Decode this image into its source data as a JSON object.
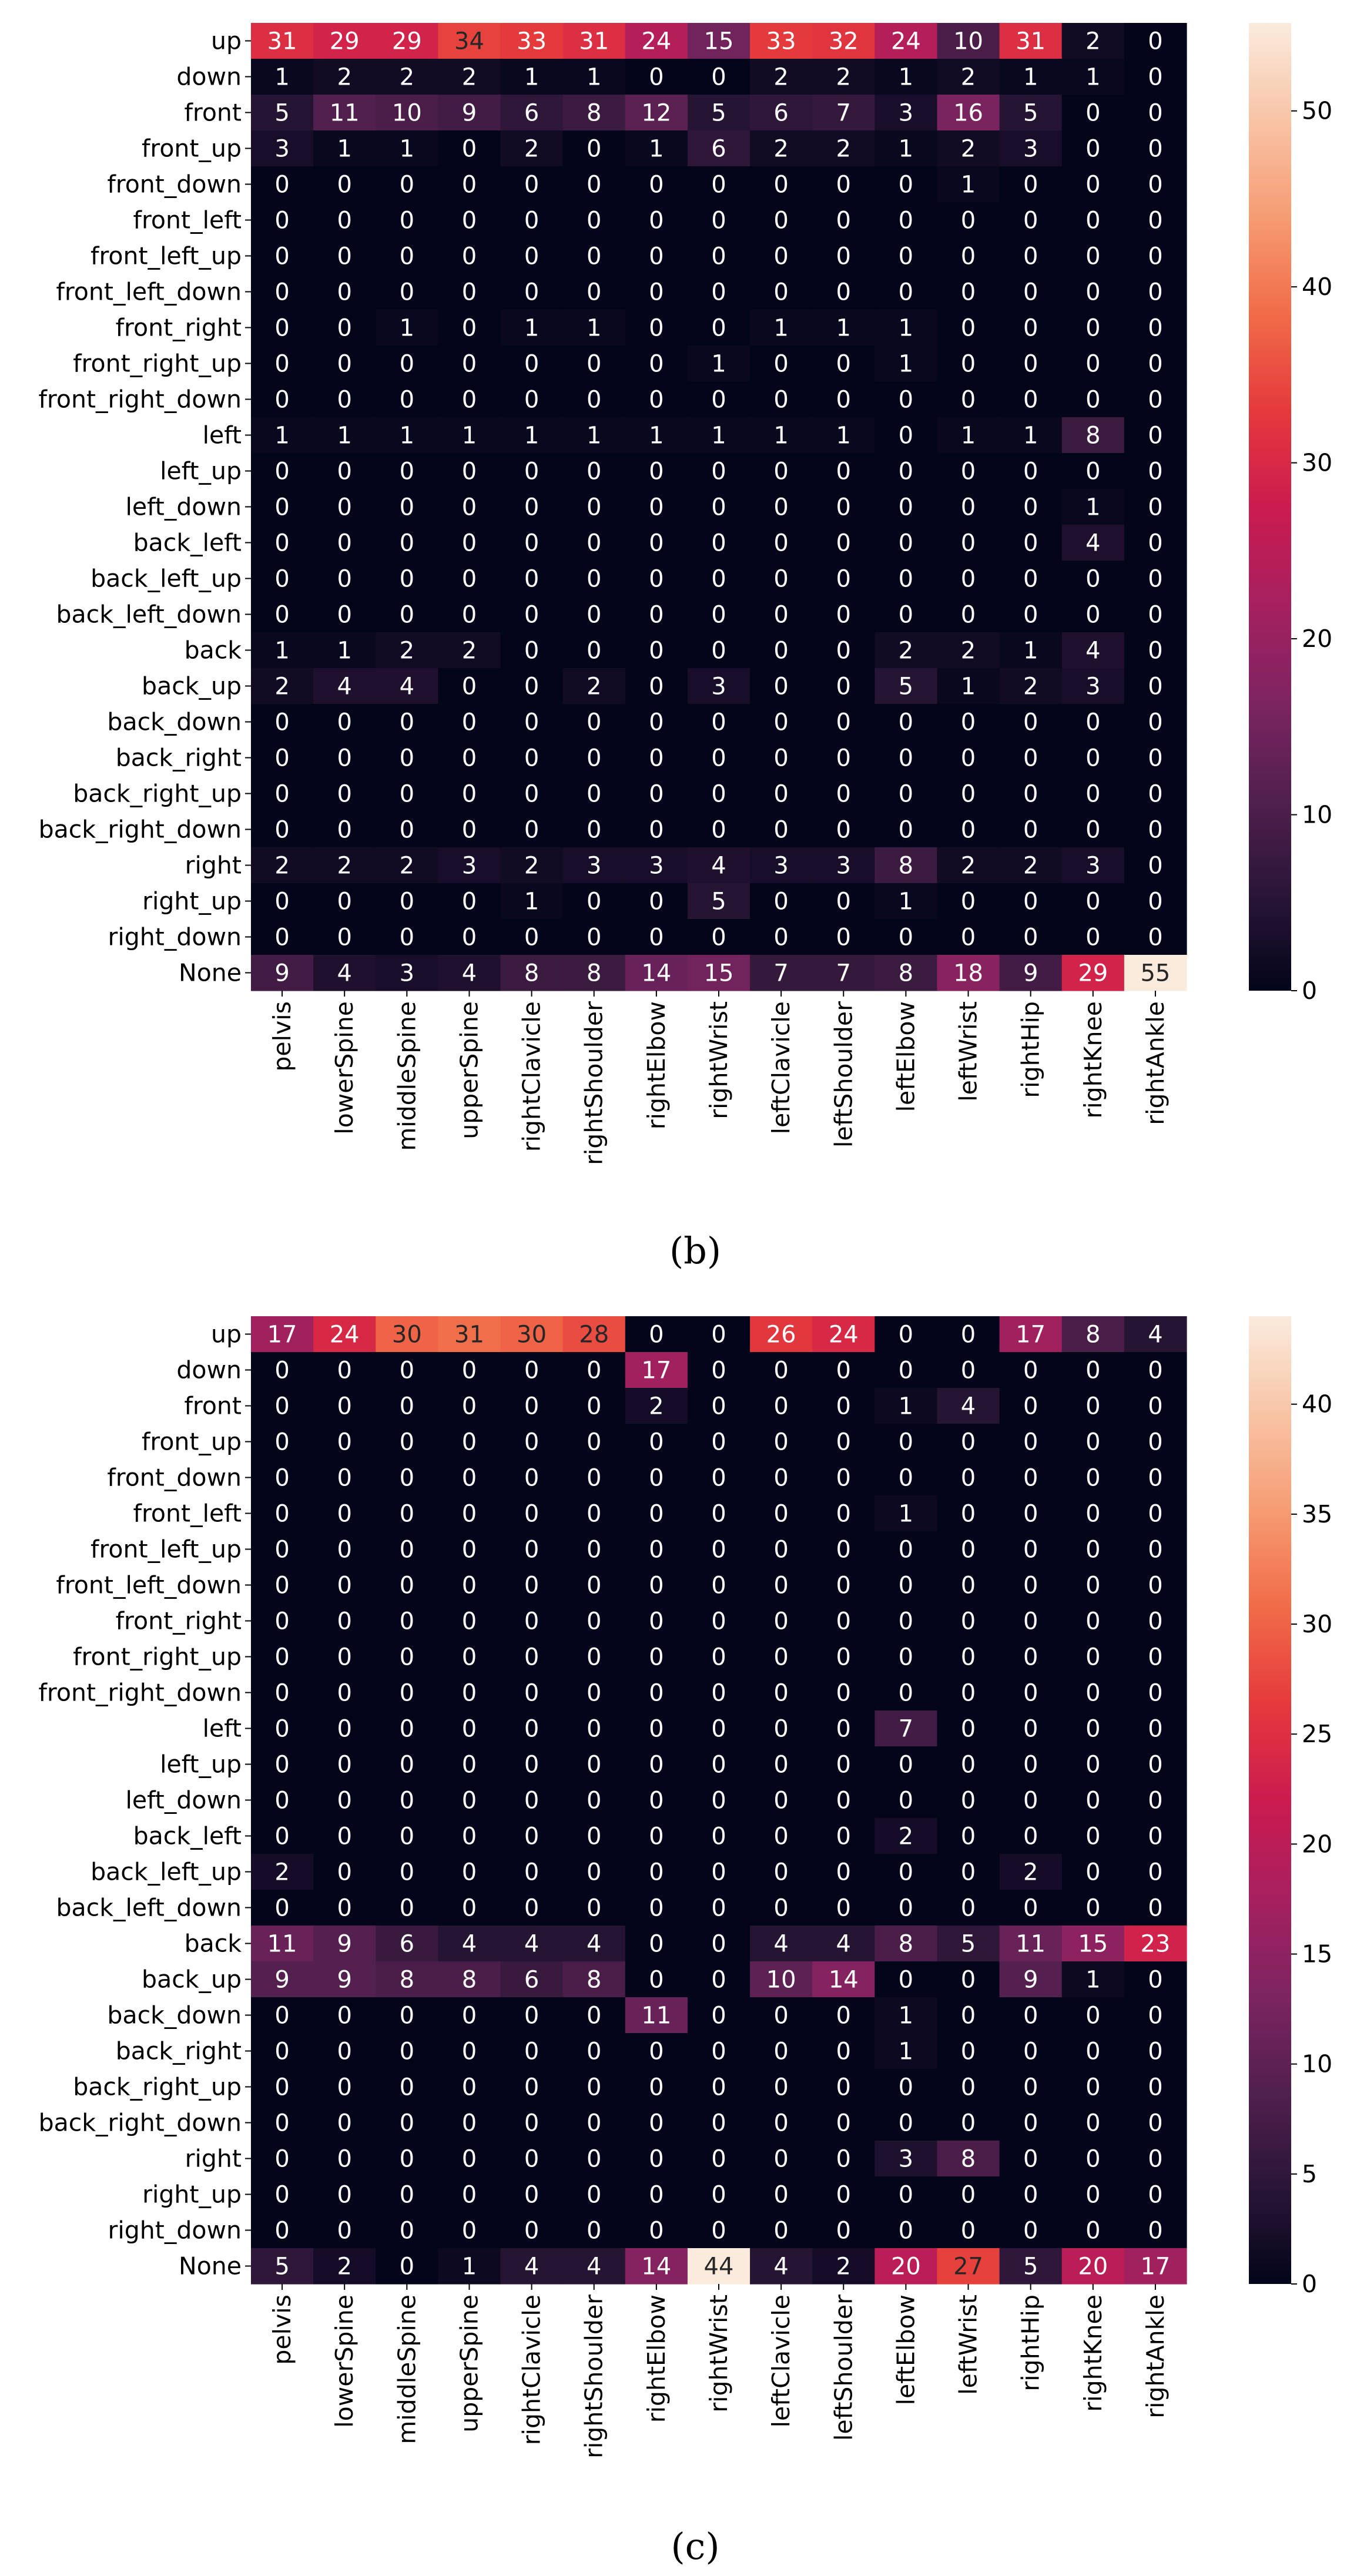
{
  "chart_data": [
    {
      "type": "heatmap",
      "caption": "(b)",
      "x_categories": [
        "pelvis",
        "lowerSpine",
        "middleSpine",
        "upperSpine",
        "rightClavicle",
        "rightShoulder",
        "rightElbow",
        "rightWrist",
        "leftClavicle",
        "leftShoulder",
        "leftElbow",
        "leftWrist",
        "rightHip",
        "rightKnee",
        "rightAnkle"
      ],
      "y_categories": [
        "up",
        "down",
        "front",
        "front_up",
        "front_down",
        "front_left",
        "front_left_up",
        "front_left_down",
        "front_right",
        "front_right_up",
        "front_right_down",
        "left",
        "left_up",
        "left_down",
        "back_left",
        "back_left_up",
        "back_left_down",
        "back",
        "back_up",
        "back_down",
        "back_right",
        "back_right_up",
        "back_right_down",
        "right",
        "right_up",
        "right_down",
        "None"
      ],
      "values": [
        [
          31,
          29,
          29,
          34,
          33,
          31,
          24,
          15,
          33,
          32,
          24,
          10,
          31,
          2,
          0
        ],
        [
          1,
          2,
          2,
          2,
          1,
          1,
          0,
          0,
          2,
          2,
          1,
          2,
          1,
          1,
          0
        ],
        [
          5,
          11,
          10,
          9,
          6,
          8,
          12,
          5,
          6,
          7,
          3,
          16,
          5,
          0,
          0
        ],
        [
          3,
          1,
          1,
          0,
          2,
          0,
          1,
          6,
          2,
          2,
          1,
          2,
          3,
          0,
          0
        ],
        [
          0,
          0,
          0,
          0,
          0,
          0,
          0,
          0,
          0,
          0,
          0,
          1,
          0,
          0,
          0
        ],
        [
          0,
          0,
          0,
          0,
          0,
          0,
          0,
          0,
          0,
          0,
          0,
          0,
          0,
          0,
          0
        ],
        [
          0,
          0,
          0,
          0,
          0,
          0,
          0,
          0,
          0,
          0,
          0,
          0,
          0,
          0,
          0
        ],
        [
          0,
          0,
          0,
          0,
          0,
          0,
          0,
          0,
          0,
          0,
          0,
          0,
          0,
          0,
          0
        ],
        [
          0,
          0,
          1,
          0,
          1,
          1,
          0,
          0,
          1,
          1,
          1,
          0,
          0,
          0,
          0
        ],
        [
          0,
          0,
          0,
          0,
          0,
          0,
          0,
          1,
          0,
          0,
          1,
          0,
          0,
          0,
          0
        ],
        [
          0,
          0,
          0,
          0,
          0,
          0,
          0,
          0,
          0,
          0,
          0,
          0,
          0,
          0,
          0
        ],
        [
          1,
          1,
          1,
          1,
          1,
          1,
          1,
          1,
          1,
          1,
          0,
          1,
          1,
          8,
          0
        ],
        [
          0,
          0,
          0,
          0,
          0,
          0,
          0,
          0,
          0,
          0,
          0,
          0,
          0,
          0,
          0
        ],
        [
          0,
          0,
          0,
          0,
          0,
          0,
          0,
          0,
          0,
          0,
          0,
          0,
          0,
          1,
          0
        ],
        [
          0,
          0,
          0,
          0,
          0,
          0,
          0,
          0,
          0,
          0,
          0,
          0,
          0,
          4,
          0
        ],
        [
          0,
          0,
          0,
          0,
          0,
          0,
          0,
          0,
          0,
          0,
          0,
          0,
          0,
          0,
          0
        ],
        [
          0,
          0,
          0,
          0,
          0,
          0,
          0,
          0,
          0,
          0,
          0,
          0,
          0,
          0,
          0
        ],
        [
          1,
          1,
          2,
          2,
          0,
          0,
          0,
          0,
          0,
          0,
          2,
          2,
          1,
          4,
          0
        ],
        [
          2,
          4,
          4,
          0,
          0,
          2,
          0,
          3,
          0,
          0,
          5,
          1,
          2,
          3,
          0
        ],
        [
          0,
          0,
          0,
          0,
          0,
          0,
          0,
          0,
          0,
          0,
          0,
          0,
          0,
          0,
          0
        ],
        [
          0,
          0,
          0,
          0,
          0,
          0,
          0,
          0,
          0,
          0,
          0,
          0,
          0,
          0,
          0
        ],
        [
          0,
          0,
          0,
          0,
          0,
          0,
          0,
          0,
          0,
          0,
          0,
          0,
          0,
          0,
          0
        ],
        [
          0,
          0,
          0,
          0,
          0,
          0,
          0,
          0,
          0,
          0,
          0,
          0,
          0,
          0,
          0
        ],
        [
          2,
          2,
          2,
          3,
          2,
          3,
          3,
          4,
          3,
          3,
          8,
          2,
          2,
          3,
          0
        ],
        [
          0,
          0,
          0,
          0,
          1,
          0,
          0,
          5,
          0,
          0,
          1,
          0,
          0,
          0,
          0
        ],
        [
          0,
          0,
          0,
          0,
          0,
          0,
          0,
          0,
          0,
          0,
          0,
          0,
          0,
          0,
          0
        ],
        [
          9,
          4,
          3,
          4,
          8,
          8,
          14,
          15,
          7,
          7,
          8,
          18,
          9,
          29,
          55
        ]
      ],
      "vmin": 0,
      "vmax": 55,
      "colorbar_ticks": [
        0,
        10,
        20,
        30,
        40,
        50
      ],
      "colormap": "rocket"
    },
    {
      "type": "heatmap",
      "caption": "(c)",
      "x_categories": [
        "pelvis",
        "lowerSpine",
        "middleSpine",
        "upperSpine",
        "rightClavicle",
        "rightShoulder",
        "rightElbow",
        "rightWrist",
        "leftClavicle",
        "leftShoulder",
        "leftElbow",
        "leftWrist",
        "rightHip",
        "rightKnee",
        "rightAnkle"
      ],
      "y_categories": [
        "up",
        "down",
        "front",
        "front_up",
        "front_down",
        "front_left",
        "front_left_up",
        "front_left_down",
        "front_right",
        "front_right_up",
        "front_right_down",
        "left",
        "left_up",
        "left_down",
        "back_left",
        "back_left_up",
        "back_left_down",
        "back",
        "back_up",
        "back_down",
        "back_right",
        "back_right_up",
        "back_right_down",
        "right",
        "right_up",
        "right_down",
        "None"
      ],
      "values": [
        [
          17,
          24,
          30,
          31,
          30,
          28,
          0,
          0,
          26,
          24,
          0,
          0,
          17,
          8,
          4
        ],
        [
          0,
          0,
          0,
          0,
          0,
          0,
          17,
          0,
          0,
          0,
          0,
          0,
          0,
          0,
          0
        ],
        [
          0,
          0,
          0,
          0,
          0,
          0,
          2,
          0,
          0,
          0,
          1,
          4,
          0,
          0,
          0
        ],
        [
          0,
          0,
          0,
          0,
          0,
          0,
          0,
          0,
          0,
          0,
          0,
          0,
          0,
          0,
          0
        ],
        [
          0,
          0,
          0,
          0,
          0,
          0,
          0,
          0,
          0,
          0,
          0,
          0,
          0,
          0,
          0
        ],
        [
          0,
          0,
          0,
          0,
          0,
          0,
          0,
          0,
          0,
          0,
          1,
          0,
          0,
          0,
          0
        ],
        [
          0,
          0,
          0,
          0,
          0,
          0,
          0,
          0,
          0,
          0,
          0,
          0,
          0,
          0,
          0
        ],
        [
          0,
          0,
          0,
          0,
          0,
          0,
          0,
          0,
          0,
          0,
          0,
          0,
          0,
          0,
          0
        ],
        [
          0,
          0,
          0,
          0,
          0,
          0,
          0,
          0,
          0,
          0,
          0,
          0,
          0,
          0,
          0
        ],
        [
          0,
          0,
          0,
          0,
          0,
          0,
          0,
          0,
          0,
          0,
          0,
          0,
          0,
          0,
          0
        ],
        [
          0,
          0,
          0,
          0,
          0,
          0,
          0,
          0,
          0,
          0,
          0,
          0,
          0,
          0,
          0
        ],
        [
          0,
          0,
          0,
          0,
          0,
          0,
          0,
          0,
          0,
          0,
          7,
          0,
          0,
          0,
          0
        ],
        [
          0,
          0,
          0,
          0,
          0,
          0,
          0,
          0,
          0,
          0,
          0,
          0,
          0,
          0,
          0
        ],
        [
          0,
          0,
          0,
          0,
          0,
          0,
          0,
          0,
          0,
          0,
          0,
          0,
          0,
          0,
          0
        ],
        [
          0,
          0,
          0,
          0,
          0,
          0,
          0,
          0,
          0,
          0,
          2,
          0,
          0,
          0,
          0
        ],
        [
          2,
          0,
          0,
          0,
          0,
          0,
          0,
          0,
          0,
          0,
          0,
          0,
          2,
          0,
          0
        ],
        [
          0,
          0,
          0,
          0,
          0,
          0,
          0,
          0,
          0,
          0,
          0,
          0,
          0,
          0,
          0
        ],
        [
          11,
          9,
          6,
          4,
          4,
          4,
          0,
          0,
          4,
          4,
          8,
          5,
          11,
          15,
          23
        ],
        [
          9,
          9,
          8,
          8,
          6,
          8,
          0,
          0,
          10,
          14,
          0,
          0,
          9,
          1,
          0
        ],
        [
          0,
          0,
          0,
          0,
          0,
          0,
          11,
          0,
          0,
          0,
          1,
          0,
          0,
          0,
          0
        ],
        [
          0,
          0,
          0,
          0,
          0,
          0,
          0,
          0,
          0,
          0,
          1,
          0,
          0,
          0,
          0
        ],
        [
          0,
          0,
          0,
          0,
          0,
          0,
          0,
          0,
          0,
          0,
          0,
          0,
          0,
          0,
          0
        ],
        [
          0,
          0,
          0,
          0,
          0,
          0,
          0,
          0,
          0,
          0,
          0,
          0,
          0,
          0,
          0
        ],
        [
          0,
          0,
          0,
          0,
          0,
          0,
          0,
          0,
          0,
          0,
          3,
          8,
          0,
          0,
          0
        ],
        [
          0,
          0,
          0,
          0,
          0,
          0,
          0,
          0,
          0,
          0,
          0,
          0,
          0,
          0,
          0
        ],
        [
          0,
          0,
          0,
          0,
          0,
          0,
          0,
          0,
          0,
          0,
          0,
          0,
          0,
          0,
          0
        ],
        [
          5,
          2,
          0,
          1,
          4,
          4,
          14,
          44,
          4,
          2,
          20,
          27,
          5,
          20,
          17
        ]
      ],
      "vmin": 0,
      "vmax": 44,
      "colorbar_ticks": [
        0,
        5,
        10,
        15,
        20,
        25,
        30,
        35,
        40
      ],
      "colormap": "rocket"
    }
  ]
}
